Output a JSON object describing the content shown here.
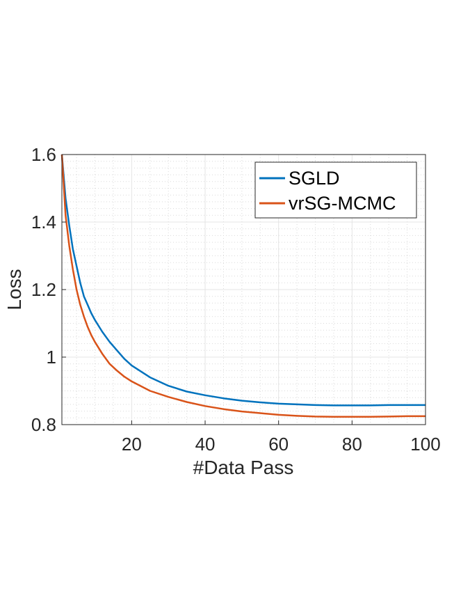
{
  "chart_data": {
    "type": "line",
    "xlabel": "#Data Pass",
    "ylabel": "Loss",
    "xlim": [
      1,
      100
    ],
    "ylim": [
      0.8,
      1.6
    ],
    "xticks": [
      "20",
      "40",
      "60",
      "80",
      "100"
    ],
    "yticks": [
      "0.8",
      "1",
      "1.2",
      "1.4",
      "1.6"
    ],
    "grid": true,
    "minor_grid": true,
    "legend_position": "top-right",
    "series": [
      {
        "name": "SGLD",
        "color": "#0072BD",
        "x": [
          1,
          2,
          3,
          4,
          5,
          6,
          7,
          8,
          9,
          10,
          12,
          14,
          16,
          18,
          20,
          25,
          30,
          35,
          40,
          45,
          50,
          55,
          60,
          65,
          70,
          75,
          80,
          85,
          90,
          95,
          100
        ],
        "y": [
          1.6,
          1.47,
          1.39,
          1.32,
          1.27,
          1.22,
          1.18,
          1.155,
          1.13,
          1.11,
          1.075,
          1.045,
          1.02,
          0.995,
          0.975,
          0.94,
          0.915,
          0.898,
          0.887,
          0.878,
          0.871,
          0.866,
          0.862,
          0.86,
          0.858,
          0.857,
          0.857,
          0.857,
          0.858,
          0.858,
          0.858
        ]
      },
      {
        "name": "vrSG-MCMC",
        "color": "#D95319",
        "x": [
          1,
          2,
          3,
          4,
          5,
          6,
          7,
          8,
          9,
          10,
          12,
          14,
          16,
          18,
          20,
          25,
          30,
          35,
          40,
          45,
          50,
          55,
          60,
          65,
          70,
          75,
          80,
          85,
          90,
          95,
          100
        ],
        "y": [
          1.6,
          1.42,
          1.33,
          1.26,
          1.2,
          1.155,
          1.12,
          1.09,
          1.065,
          1.045,
          1.01,
          0.98,
          0.96,
          0.942,
          0.928,
          0.9,
          0.882,
          0.867,
          0.855,
          0.846,
          0.839,
          0.834,
          0.829,
          0.826,
          0.824,
          0.823,
          0.823,
          0.823,
          0.824,
          0.825,
          0.825
        ]
      }
    ]
  }
}
